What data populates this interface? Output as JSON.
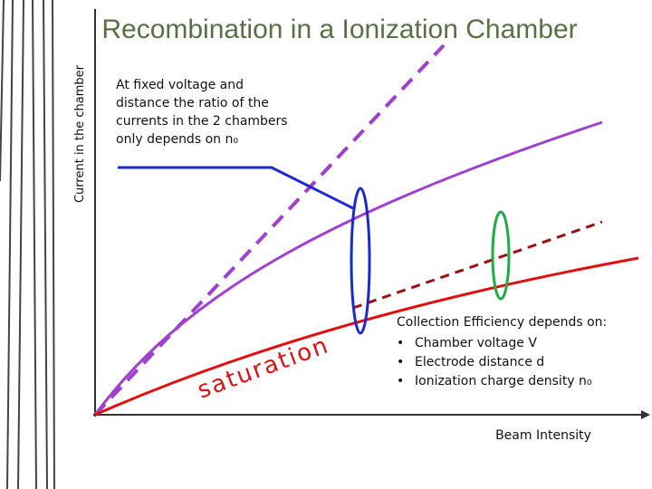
{
  "title": "Recombination in a Ionization Chamber",
  "y_axis_label": "Current in the chamber",
  "x_axis_label": "Beam Intensity",
  "annotation": [
    "At fixed voltage and",
    "distance the ratio of the",
    "currents in the 2 chambers",
    "only depends  on n₀"
  ],
  "curve_label": "saturation",
  "efficiency": {
    "heading": "Collection Efficiency depends on:",
    "items": [
      "Chamber voltage V",
      "Electrode distance d",
      "Ionization charge density  n₀"
    ]
  }
}
